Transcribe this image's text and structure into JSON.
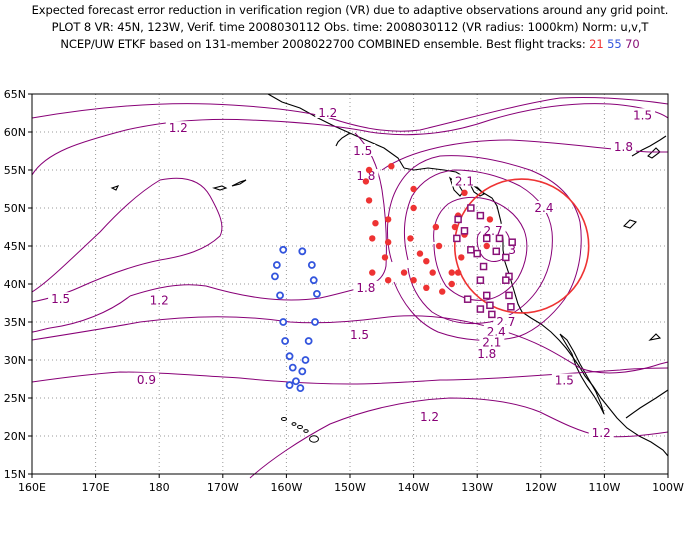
{
  "title": {
    "line1": "Expected forecast error reduction in verification region (VR) due to adaptive observations around any grid point.",
    "line2": "PLOT 8 VR: 45N, 123W, Verif. time 2008030112 Obs. time: 2008030112 (VR radius: 1000km) Norm: u,v,T",
    "line3_prefix": "NCEP/UW ETKF based on 131-member 2008022700 COMBINED ensemble.  Best flight tracks: ",
    "track1": "21",
    "track2": "55",
    "track3": "70"
  },
  "colors": {
    "contour": "#880077",
    "verification_circle": "#ee3333",
    "track_21": "#ee3333",
    "track_55": "#3355dd",
    "track_70": "#881177",
    "grid": "#999999",
    "coast": "#000000"
  },
  "axes": {
    "lon_range": [
      160,
      260
    ],
    "lat_range": [
      15,
      65
    ],
    "x_ticks": [
      "160E",
      "170E",
      "180",
      "170W",
      "160W",
      "150W",
      "140W",
      "130W",
      "120W",
      "110W",
      "100W"
    ],
    "y_ticks": [
      "15N",
      "20N",
      "25N",
      "30N",
      "35N",
      "40N",
      "45N",
      "50N",
      "55N",
      "60N",
      "65N"
    ]
  },
  "verification_region": {
    "center_lon": 237,
    "center_lat": 45,
    "radius_km": 1000
  },
  "contour_labels": [
    {
      "text": "1.2",
      "lon": 183,
      "lat": 60.5
    },
    {
      "text": "1.2",
      "lon": 206.5,
      "lat": 62.5
    },
    {
      "text": "1.5",
      "lon": 256,
      "lat": 62.2
    },
    {
      "text": "1.8",
      "lon": 253,
      "lat": 58
    },
    {
      "text": "1.5",
      "lon": 212,
      "lat": 57.5
    },
    {
      "text": "1.8",
      "lon": 212.5,
      "lat": 54.2
    },
    {
      "text": "2.1",
      "lon": 228,
      "lat": 53.5
    },
    {
      "text": "2.4",
      "lon": 240.5,
      "lat": 50
    },
    {
      "text": "2.7",
      "lon": 232.5,
      "lat": 47
    },
    {
      "text": "3",
      "lon": 235.5,
      "lat": 44.5
    },
    {
      "text": "1.8",
      "lon": 212.5,
      "lat": 39.5
    },
    {
      "text": "1.5",
      "lon": 164.5,
      "lat": 38
    },
    {
      "text": "1.2",
      "lon": 180,
      "lat": 37.8
    },
    {
      "text": "1.5",
      "lon": 211.5,
      "lat": 33.3
    },
    {
      "text": "2.7",
      "lon": 234.5,
      "lat": 35
    },
    {
      "text": "2.4",
      "lon": 233,
      "lat": 33.7
    },
    {
      "text": "2.1",
      "lon": 232.3,
      "lat": 32.3
    },
    {
      "text": "1.8",
      "lon": 231.5,
      "lat": 30.8
    },
    {
      "text": "0.9",
      "lon": 178,
      "lat": 27.4
    },
    {
      "text": "1.5",
      "lon": 243.7,
      "lat": 27.3
    },
    {
      "text": "1.2",
      "lon": 222.5,
      "lat": 22.5
    },
    {
      "text": "1.2",
      "lon": 249.5,
      "lat": 20.4
    }
  ],
  "track_21_points": [
    [
      213,
      55
    ],
    [
      216.5,
      55.5
    ],
    [
      212.5,
      53.5
    ],
    [
      213,
      51
    ],
    [
      214,
      48
    ],
    [
      216,
      45.5
    ],
    [
      215.5,
      43.5
    ],
    [
      213.5,
      41.5
    ],
    [
      216,
      40.5
    ],
    [
      222,
      39.5
    ],
    [
      227,
      41.5
    ],
    [
      224.5,
      39
    ],
    [
      226,
      40
    ],
    [
      226,
      41.5
    ],
    [
      220,
      40.5
    ],
    [
      218.5,
      41.5
    ],
    [
      226.5,
      47.5
    ],
    [
      231.5,
      45
    ],
    [
      232,
      48.5
    ],
    [
      227,
      49
    ],
    [
      228,
      46.5
    ],
    [
      228,
      52
    ],
    [
      220,
      52.5
    ],
    [
      220,
      50
    ],
    [
      216,
      48.5
    ],
    [
      219.5,
      46
    ],
    [
      221,
      44
    ],
    [
      222,
      43
    ],
    [
      223,
      41.5
    ],
    [
      223.5,
      47.5
    ],
    [
      224,
      45
    ],
    [
      213.5,
      46
    ],
    [
      227.5,
      43.5
    ]
  ],
  "track_55_points": [
    [
      199.5,
      44.5
    ],
    [
      202.5,
      44.3
    ],
    [
      198.5,
      42.5
    ],
    [
      204,
      42.5
    ],
    [
      198.2,
      41
    ],
    [
      204.3,
      40.5
    ],
    [
      199,
      38.5
    ],
    [
      204.8,
      38.7
    ],
    [
      199.5,
      35
    ],
    [
      204.5,
      35
    ],
    [
      199.8,
      32.5
    ],
    [
      203.5,
      32.5
    ],
    [
      200.5,
      30.5
    ],
    [
      203,
      30
    ],
    [
      201,
      29
    ],
    [
      202.5,
      28.5
    ],
    [
      201.5,
      27.2
    ],
    [
      202.2,
      26.3
    ],
    [
      200.5,
      26.7
    ]
  ],
  "track_70_points": [
    [
      229,
      50
    ],
    [
      227,
      48.5
    ],
    [
      230.5,
      49
    ],
    [
      228,
      47
    ],
    [
      231.5,
      46
    ],
    [
      226.8,
      46
    ],
    [
      233.5,
      46
    ],
    [
      229,
      44.5
    ],
    [
      235.5,
      45.5
    ],
    [
      230,
      44
    ],
    [
      233,
      44.3
    ],
    [
      234.5,
      43.5
    ],
    [
      231,
      42.3
    ],
    [
      235,
      41
    ],
    [
      230.5,
      40.5
    ],
    [
      234.5,
      40.5
    ],
    [
      231.5,
      38.5
    ],
    [
      235,
      38.5
    ],
    [
      232,
      37.2
    ],
    [
      235.3,
      37
    ],
    [
      232.3,
      36
    ],
    [
      230.5,
      36.7
    ],
    [
      228.5,
      38
    ]
  ]
}
